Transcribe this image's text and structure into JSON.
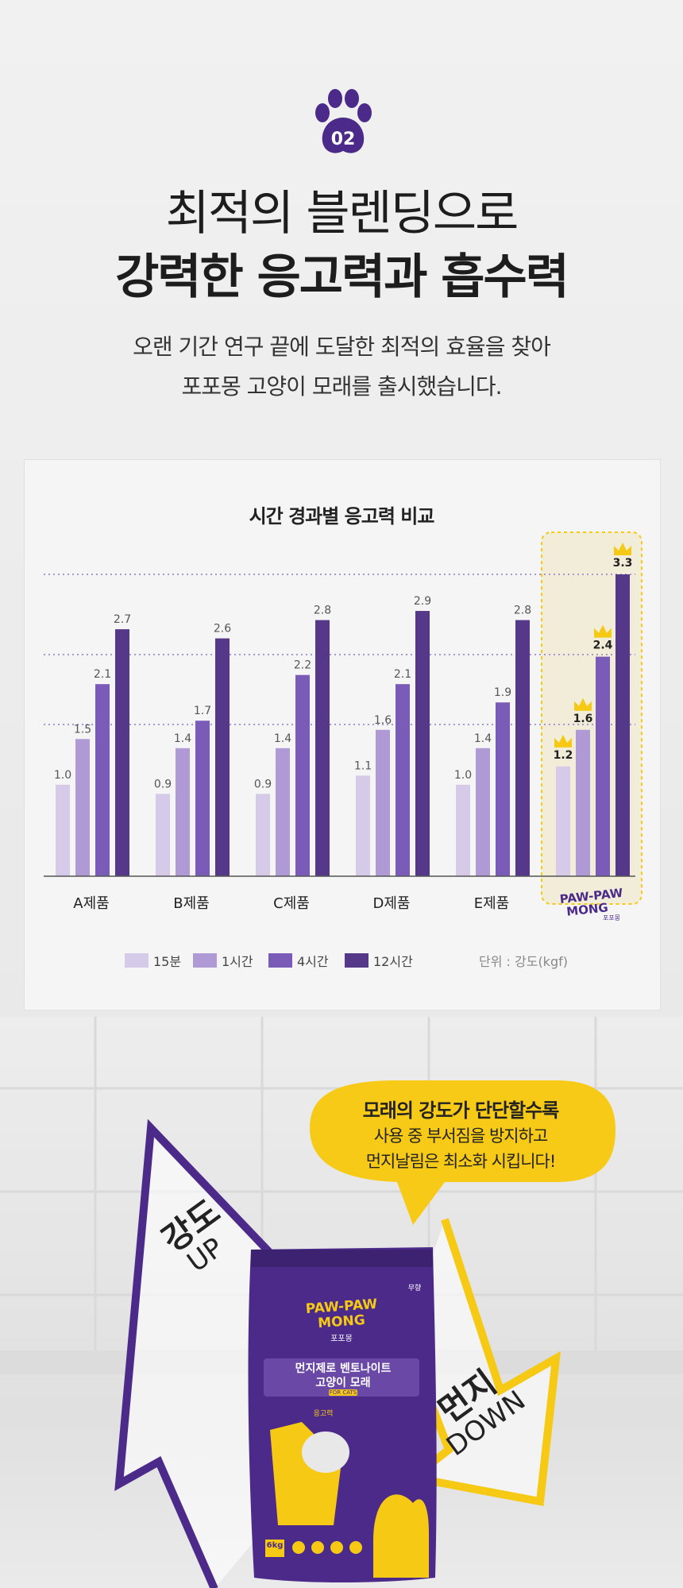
{
  "header": {
    "step_number": "02",
    "title_line1": "최적의 블렌딩으로",
    "title_line2": "강력한 응고력과 흡수력",
    "subtitle_line1": "오랜 기간 연구 끝에 도달한 최적의 효율을 찾아",
    "subtitle_line2": "포포몽 고양이 모래를 출시했습니다."
  },
  "colors": {
    "brand_purple": "#4c2a8a",
    "accent_yellow": "#f6c915",
    "highlight_bg": "#f2edd8"
  },
  "chart_data": {
    "type": "bar",
    "title": "시간 경과별 응고력 비교",
    "categories": [
      "A제품",
      "B제품",
      "C제품",
      "D제품",
      "E제품",
      "PAW-PAW MONG"
    ],
    "series": [
      {
        "name": "15분",
        "values": [
          1.0,
          0.9,
          0.9,
          1.1,
          1.0,
          1.2
        ],
        "color": "#d5cbe8"
      },
      {
        "name": "1시간",
        "values": [
          1.5,
          1.4,
          1.4,
          1.6,
          1.4,
          1.6
        ],
        "color": "#b09ad6"
      },
      {
        "name": "4시간",
        "values": [
          2.1,
          1.7,
          2.2,
          2.1,
          1.9,
          2.4
        ],
        "color": "#7a5bb8"
      },
      {
        "name": "12시간",
        "values": [
          2.7,
          2.6,
          2.8,
          2.9,
          2.8,
          3.3
        ],
        "color": "#553889"
      }
    ],
    "value_labels": {
      "A": [
        "1.0",
        "1.5",
        "2.1",
        "2.7"
      ],
      "B": [
        "0.9",
        "1.4",
        "1.7",
        "2.6"
      ],
      "C": [
        "0.9",
        "1.4",
        "2.2",
        "2.8"
      ],
      "D": [
        "1.1",
        "1.6",
        "2.1",
        "2.9"
      ],
      "E": [
        "1.0",
        "1.4",
        "1.9",
        "2.8"
      ],
      "F": [
        "1.2",
        "1.6",
        "2.4",
        "3.3"
      ]
    },
    "highlight_category": "PAW-PAW MONG",
    "ylim": [
      0,
      3.6
    ],
    "grid": "dotted",
    "unit_label": "단위 : 강도(kgf)",
    "legend_position": "bottom"
  },
  "brand_logo": {
    "line1": "PAW-PAW",
    "line2": "MONG",
    "sub": "포포몽"
  },
  "bubble": {
    "line1": "모래의 강도가 단단할수록",
    "line2": "사용 중 부서짐을 방지하고",
    "line3": "먼지날림은 최소화 시킵니다!"
  },
  "arrows": {
    "up_ko": "강도",
    "up_en": "UP",
    "down_ko": "먼지",
    "down_en": "DOWN"
  },
  "package": {
    "brand_line1": "PAW-PAW",
    "brand_line2": "MONG",
    "brand_sub": "포포몽",
    "product_line1": "먼지제로 벤토나이트",
    "product_line2": "고양이 모래",
    "for_cats": "FOR CATS",
    "weight": "6kg",
    "badge": "무향",
    "feature": "응고력"
  }
}
